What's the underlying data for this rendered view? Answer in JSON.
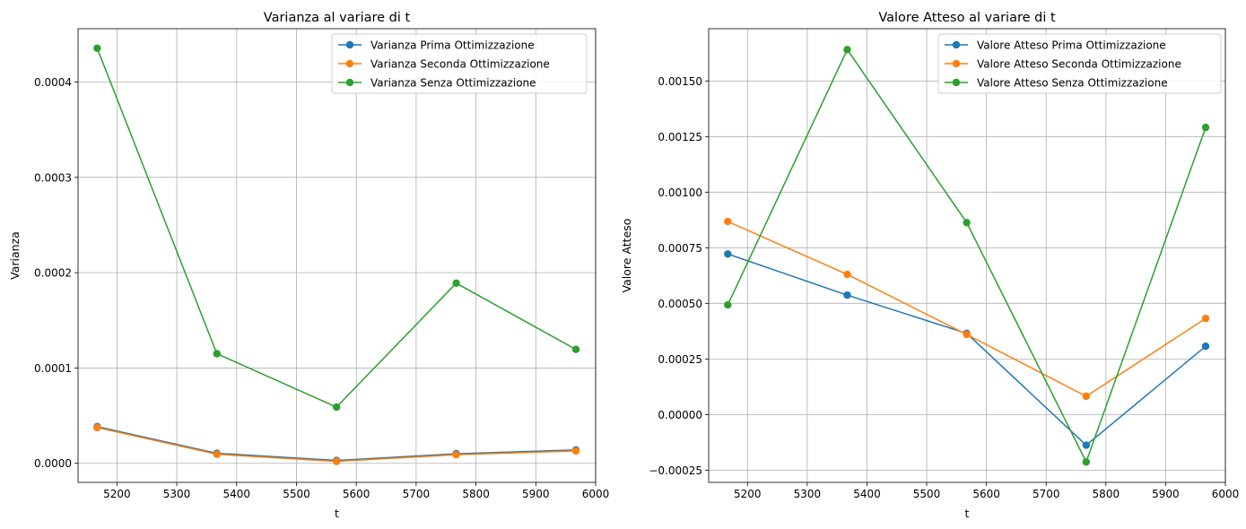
{
  "chart_data": [
    {
      "type": "line",
      "title": "Varianza al variare di t",
      "xlabel": "t",
      "ylabel": "Varianza",
      "xlim": [
        5135,
        6000
      ],
      "ylim": [
        -2e-05,
        0.000456
      ],
      "xticks": [
        5200,
        5300,
        5400,
        5500,
        5600,
        5700,
        5800,
        5900,
        6000
      ],
      "yticks": [
        0.0,
        0.0001,
        0.0002,
        0.0003,
        0.0004
      ],
      "xtick_labels": [
        "5200",
        "5300",
        "5400",
        "5500",
        "5600",
        "5700",
        "5800",
        "5900",
        "6000"
      ],
      "ytick_labels": [
        "0.0000",
        "0.0001",
        "0.0002",
        "0.0003",
        "0.0004"
      ],
      "grid": true,
      "legend_position": "top-right",
      "x": [
        5167,
        5367,
        5567,
        5767,
        5967
      ],
      "series": [
        {
          "name": "Varianza Prima Ottimizzazione",
          "color": "#1f77b4",
          "values": [
            3.85e-05,
            1.05e-05,
            3e-06,
            1e-05,
            1.4e-05
          ]
        },
        {
          "name": "Varianza Seconda Ottimizzazione",
          "color": "#ff7f0e",
          "values": [
            3.75e-05,
            9.5e-06,
            2e-06,
            9e-06,
            1.3e-05
          ]
        },
        {
          "name": "Varianza Senza Ottimizzazione",
          "color": "#2ca02c",
          "values": [
            0.0004355,
            0.000115,
            5.9e-05,
            0.000189,
            0.0001195
          ]
        }
      ]
    },
    {
      "type": "line",
      "title": "Valore Atteso al variare di t",
      "xlabel": "t",
      "ylabel": "Valore Atteso",
      "xlim": [
        5135,
        6000
      ],
      "ylim": [
        -0.000305,
        0.001735
      ],
      "xticks": [
        5200,
        5300,
        5400,
        5500,
        5600,
        5700,
        5800,
        5900,
        6000
      ],
      "yticks": [
        -0.00025,
        0.0,
        0.00025,
        0.0005,
        0.00075,
        0.001,
        0.00125,
        0.0015
      ],
      "xtick_labels": [
        "5200",
        "5300",
        "5400",
        "5500",
        "5600",
        "5700",
        "5800",
        "5900",
        "6000"
      ],
      "ytick_labels": [
        "−0.00025",
        "0.00000",
        "0.00025",
        "0.00050",
        "0.00075",
        "0.00100",
        "0.00125",
        "0.00150"
      ],
      "grid": true,
      "legend_position": "top-right",
      "x": [
        5167,
        5367,
        5567,
        5767,
        5967
      ],
      "series": [
        {
          "name": "Valore Atteso Prima Ottimizzazione",
          "color": "#1f77b4",
          "values": [
            0.000722,
            0.000537,
            0.000365,
            -0.000138,
            0.000307
          ]
        },
        {
          "name": "Valore Atteso Seconda Ottimizzazione",
          "color": "#ff7f0e",
          "values": [
            0.000868,
            0.00063,
            0.00036,
            8.2e-05,
            0.000432
          ]
        },
        {
          "name": "Valore Atteso Senza Ottimizzazione",
          "color": "#2ca02c",
          "values": [
            0.000493,
            0.001641,
            0.000863,
            -0.000213,
            0.001291
          ]
        }
      ]
    }
  ]
}
